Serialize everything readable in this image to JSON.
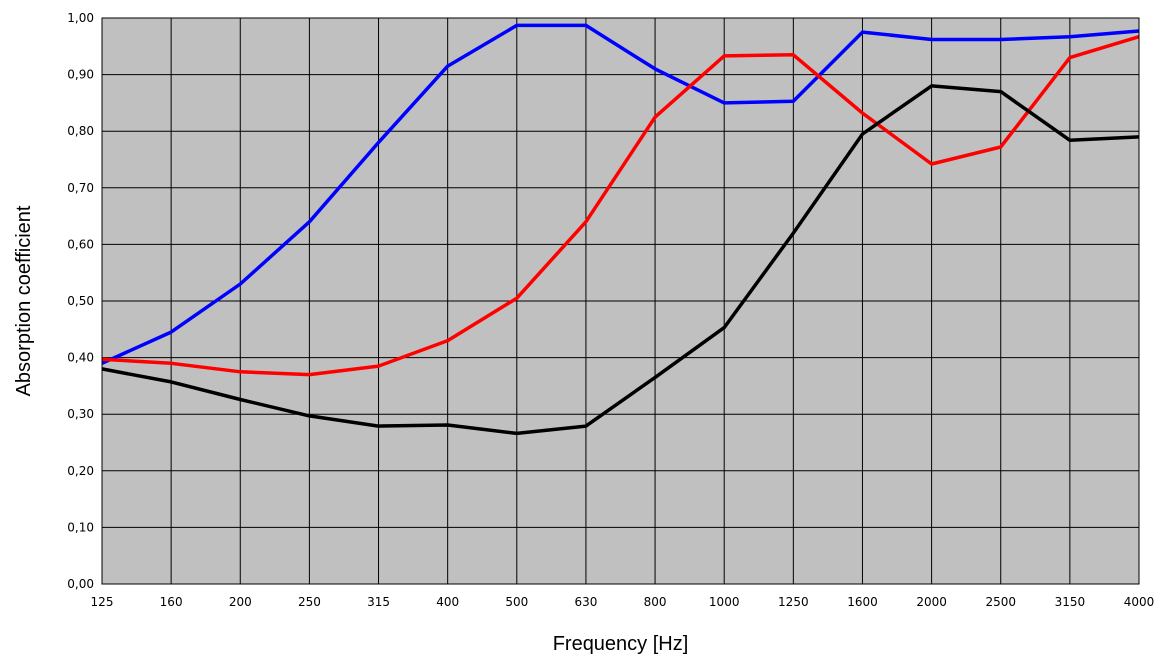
{
  "chart_data": {
    "type": "line",
    "xlabel": "Frequency [Hz]",
    "ylabel": "Absorption coefficient",
    "x": [
      "125",
      "160",
      "200",
      "250",
      "315",
      "400",
      "500",
      "630",
      "800",
      "1000",
      "1250",
      "1600",
      "2000",
      "2500",
      "3150",
      "4000"
    ],
    "yticks": [
      "0,00",
      "0,10",
      "0,20",
      "0,30",
      "0,40",
      "0,50",
      "0,60",
      "0,70",
      "0,80",
      "0,90",
      "1,00"
    ],
    "ylim": [
      0,
      1
    ],
    "grid": true,
    "legend": "none",
    "plot_background": "#c0c0c0",
    "series": [
      {
        "color": "#0000ff",
        "values": [
          0.39,
          0.445,
          0.53,
          0.64,
          0.78,
          0.915,
          0.987,
          0.987,
          0.91,
          0.85,
          0.853,
          0.975,
          0.962,
          0.962,
          0.967,
          0.977
        ]
      },
      {
        "color": "#ff0000",
        "values": [
          0.397,
          0.39,
          0.375,
          0.37,
          0.385,
          0.43,
          0.505,
          0.64,
          0.825,
          0.933,
          0.935,
          0.832,
          0.742,
          0.772,
          0.93,
          0.967
        ]
      },
      {
        "color": "#000000",
        "values": [
          0.38,
          0.357,
          0.326,
          0.297,
          0.279,
          0.281,
          0.266,
          0.279,
          0.365,
          0.453,
          0.62,
          0.795,
          0.88,
          0.87,
          0.784,
          0.79
        ]
      }
    ]
  }
}
